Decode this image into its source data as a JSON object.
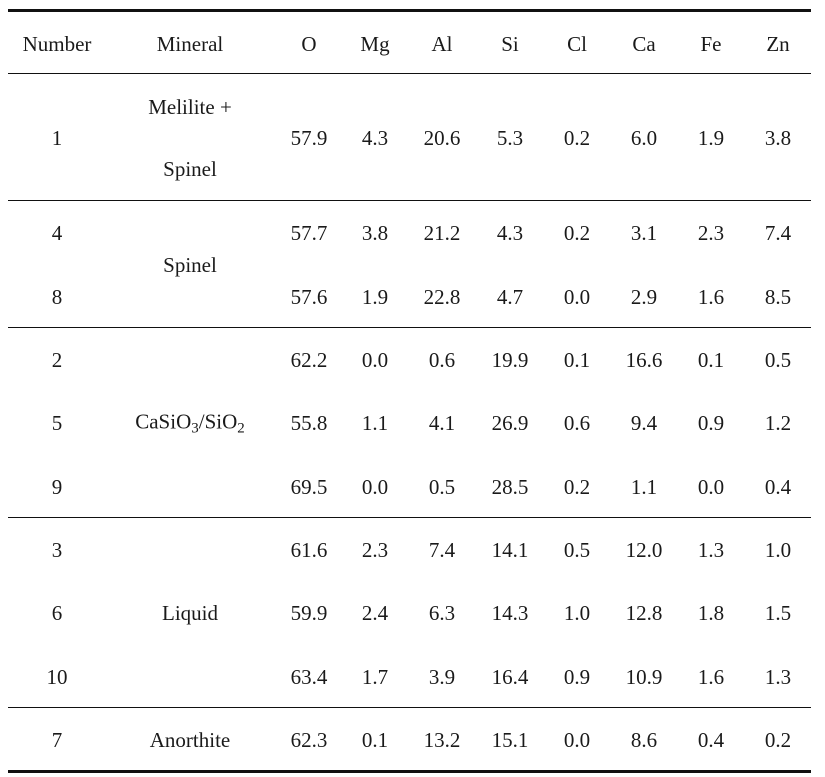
{
  "table": {
    "headers": [
      "Number",
      "Mineral",
      "O",
      "Mg",
      "Al",
      "Si",
      "Cl",
      "Ca",
      "Fe",
      "Zn"
    ],
    "groups": [
      {
        "mineral_lines": [
          "Melilite +",
          "Spinel"
        ],
        "rows": [
          {
            "number": "1",
            "values": [
              "57.9",
              "4.3",
              "20.6",
              "5.3",
              "0.2",
              "6.0",
              "1.9",
              "3.8"
            ]
          }
        ]
      },
      {
        "mineral_lines": [
          "Spinel"
        ],
        "rows": [
          {
            "number": "4",
            "values": [
              "57.7",
              "3.8",
              "21.2",
              "4.3",
              "0.2",
              "3.1",
              "2.3",
              "7.4"
            ]
          },
          {
            "number": "8",
            "values": [
              "57.6",
              "1.9",
              "22.8",
              "4.7",
              "0.0",
              "2.9",
              "1.6",
              "8.5"
            ]
          }
        ]
      },
      {
        "mineral_formula": {
          "a": "CaSiO",
          "a_sub": "3",
          "sep": "/SiO",
          "b_sub": "2"
        },
        "rows": [
          {
            "number": "2",
            "values": [
              "62.2",
              "0.0",
              "0.6",
              "19.9",
              "0.1",
              "16.6",
              "0.1",
              "0.5"
            ]
          },
          {
            "number": "5",
            "values": [
              "55.8",
              "1.1",
              "4.1",
              "26.9",
              "0.6",
              "9.4",
              "0.9",
              "1.2"
            ]
          },
          {
            "number": "9",
            "values": [
              "69.5",
              "0.0",
              "0.5",
              "28.5",
              "0.2",
              "1.1",
              "0.0",
              "0.4"
            ]
          }
        ]
      },
      {
        "mineral_lines": [
          "Liquid"
        ],
        "rows": [
          {
            "number": "3",
            "values": [
              "61.6",
              "2.3",
              "7.4",
              "14.1",
              "0.5",
              "12.0",
              "1.3",
              "1.0"
            ]
          },
          {
            "number": "6",
            "values": [
              "59.9",
              "2.4",
              "6.3",
              "14.3",
              "1.0",
              "12.8",
              "1.8",
              "1.5"
            ]
          },
          {
            "number": "10",
            "values": [
              "63.4",
              "1.7",
              "3.9",
              "16.4",
              "0.9",
              "10.9",
              "1.6",
              "1.3"
            ]
          }
        ]
      },
      {
        "mineral_lines": [
          "Anorthite"
        ],
        "rows": [
          {
            "number": "7",
            "values": [
              "62.3",
              "0.1",
              "13.2",
              "15.1",
              "0.0",
              "8.6",
              "0.4",
              "0.2"
            ]
          }
        ]
      }
    ]
  }
}
